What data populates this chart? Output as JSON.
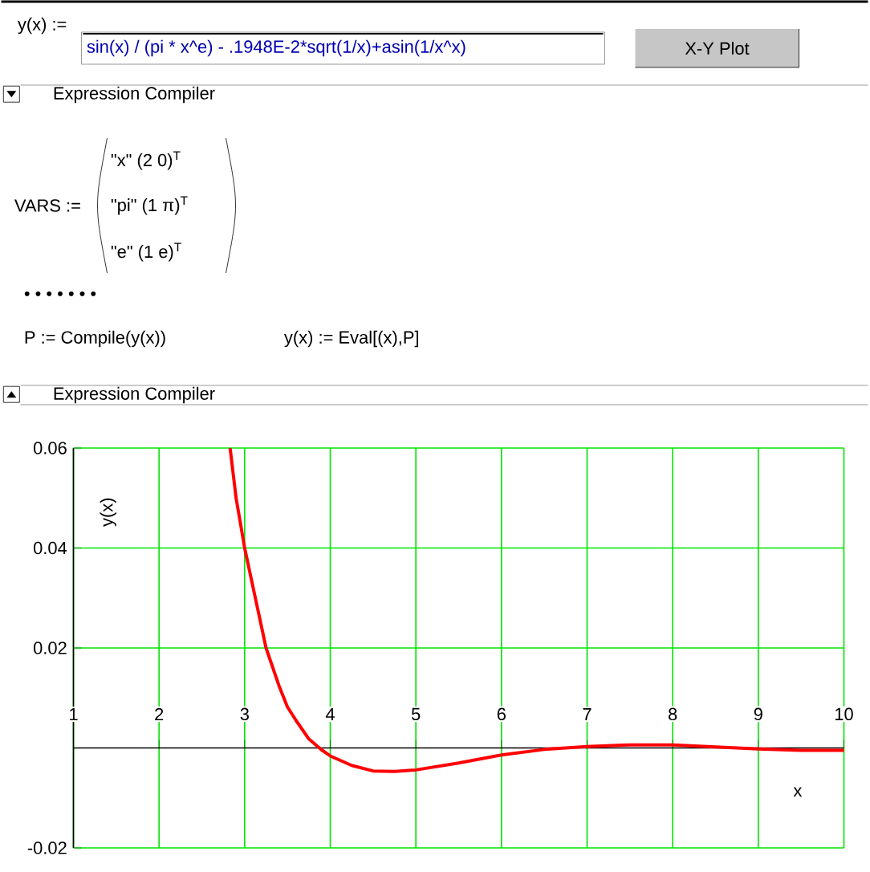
{
  "chart_data": {
    "type": "line",
    "xlabel": "x",
    "ylabel": "y(x)",
    "x": [
      2.83,
      2.9,
      3,
      3.1,
      3.25,
      3.4,
      3.5,
      3.6,
      3.75,
      3.9,
      4,
      4.25,
      4.5,
      4.75,
      5,
      5.5,
      6,
      6.5,
      7,
      7.5,
      8,
      8.5,
      9,
      9.5,
      10
    ],
    "series": [
      {
        "color": "#ff0000",
        "values": [
          0.06,
          0.05,
          0.04,
          0.032,
          0.02,
          0.0125,
          0.0082,
          0.0055,
          0.0018,
          -0.0004,
          -0.0016,
          -0.0035,
          -0.0046,
          -0.0047,
          -0.0044,
          -0.003,
          -0.0014,
          -0.0003,
          0.0003,
          0.0006,
          0.0006,
          0.0002,
          -0.0002,
          -0.0005,
          -0.0005
        ]
      }
    ],
    "xlim": [
      1,
      10
    ],
    "ylim": [
      -0.02,
      0.06
    ],
    "xticks": [
      1,
      2,
      3,
      4,
      5,
      6,
      7,
      8,
      9,
      10
    ],
    "yticks": [
      -0.02,
      {
        "value": 0,
        "label": null
      },
      0.02,
      0.04,
      0.06
    ],
    "grid": true,
    "marker": "none",
    "line_style": "solid",
    "annotations": [
      "y(x) :=",
      "sin(x) / (pi * x^e) - .1948E-2*sqrt(1/x)+asin(1/x^x)",
      "X-Y Plot",
      "Expression Compiler",
      "VARS :=",
      "\"x\"   (2  0)$^{T}$",
      "\"pi\"   (1  π)$^{T}$",
      "\"e\"   (1  e)$^{T}$",
      "• • • • • •   •",
      "P := Compile(y(x))",
      "y(x) := Eval[(x),P]",
      "Expression Compiler"
    ]
  }
}
